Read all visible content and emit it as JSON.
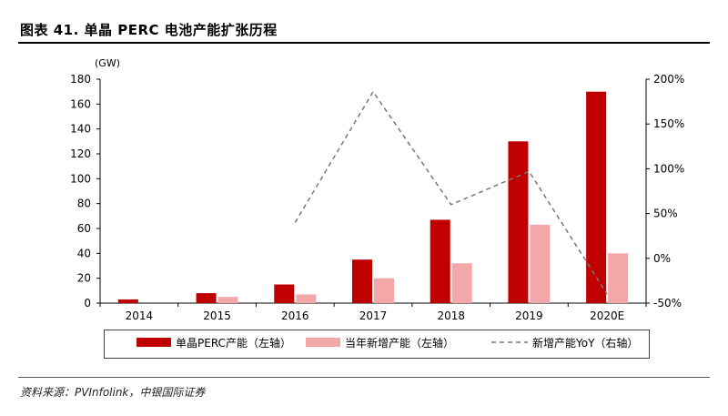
{
  "title": "图表 41. 单晶 PERC 电池产能扩张历程",
  "source": "资料来源：PVInfolink，中银国际证券",
  "colors": {
    "dark_bar": "#C00000",
    "light_bar": "#F4A7A9",
    "line": "#777777"
  },
  "chart_data": {
    "type": "bar",
    "categories": [
      "2014",
      "2015",
      "2016",
      "2017",
      "2018",
      "2019",
      "2020E"
    ],
    "left_unit": "(GW)",
    "left_axis": {
      "min": 0,
      "max": 180,
      "ticks": [
        0,
        20,
        40,
        60,
        80,
        100,
        120,
        140,
        160,
        180
      ]
    },
    "right_axis": {
      "min": -50,
      "max": 200,
      "ticks": [
        "-50%",
        "0%",
        "50%",
        "100%",
        "150%",
        "200%"
      ]
    },
    "series": [
      {
        "name": "单晶PERC产能（左轴）",
        "type": "bar",
        "axis": "left",
        "values": [
          3,
          8,
          15,
          35,
          67,
          130,
          170
        ]
      },
      {
        "name": "当年新增产能（左轴）",
        "type": "bar",
        "axis": "left",
        "values": [
          0,
          5,
          7,
          20,
          32,
          63,
          40
        ]
      },
      {
        "name": "新增产能YoY（右轴）",
        "type": "line",
        "axis": "right",
        "values": [
          null,
          null,
          40,
          186,
          60,
          97,
          -40
        ]
      }
    ]
  }
}
